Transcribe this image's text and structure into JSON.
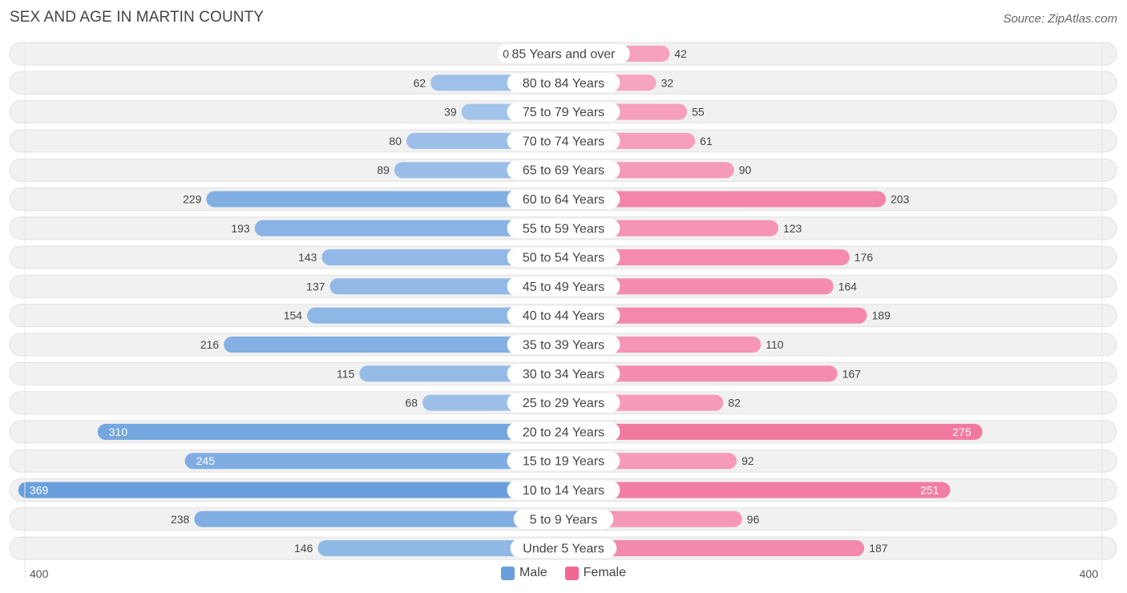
{
  "header": {
    "title": "SEX AND AGE IN MARTIN COUNTY",
    "source": "Source: ZipAtlas.com"
  },
  "legend": {
    "male_label": "Male",
    "female_label": "Female"
  },
  "axis": {
    "left_label": "400",
    "right_label": "400"
  },
  "colors": {
    "male": "#6a9fdd",
    "male_light": "#a9c8ec",
    "female": "#f06892",
    "female_light": "#f7aac3",
    "row_bg": "#f1f1f1"
  },
  "chart_data": {
    "type": "bar",
    "orientation": "horizontal-diverging",
    "title": "SEX AND AGE IN MARTIN COUNTY",
    "xlim": [
      -400,
      400
    ],
    "legend_position": "bottom-center",
    "categories": [
      "85 Years and over",
      "80 to 84 Years",
      "75 to 79 Years",
      "70 to 74 Years",
      "65 to 69 Years",
      "60 to 64 Years",
      "55 to 59 Years",
      "50 to 54 Years",
      "45 to 49 Years",
      "40 to 44 Years",
      "35 to 39 Years",
      "30 to 34 Years",
      "25 to 29 Years",
      "20 to 24 Years",
      "15 to 19 Years",
      "10 to 14 Years",
      "5 to 9 Years",
      "Under 5 Years"
    ],
    "series": [
      {
        "name": "Male",
        "values": [
          0,
          62,
          39,
          80,
          89,
          229,
          193,
          143,
          137,
          154,
          216,
          115,
          68,
          310,
          245,
          369,
          238,
          146
        ]
      },
      {
        "name": "Female",
        "values": [
          42,
          32,
          55,
          61,
          90,
          203,
          123,
          176,
          164,
          189,
          110,
          167,
          82,
          275,
          92,
          251,
          96,
          187
        ]
      }
    ]
  }
}
